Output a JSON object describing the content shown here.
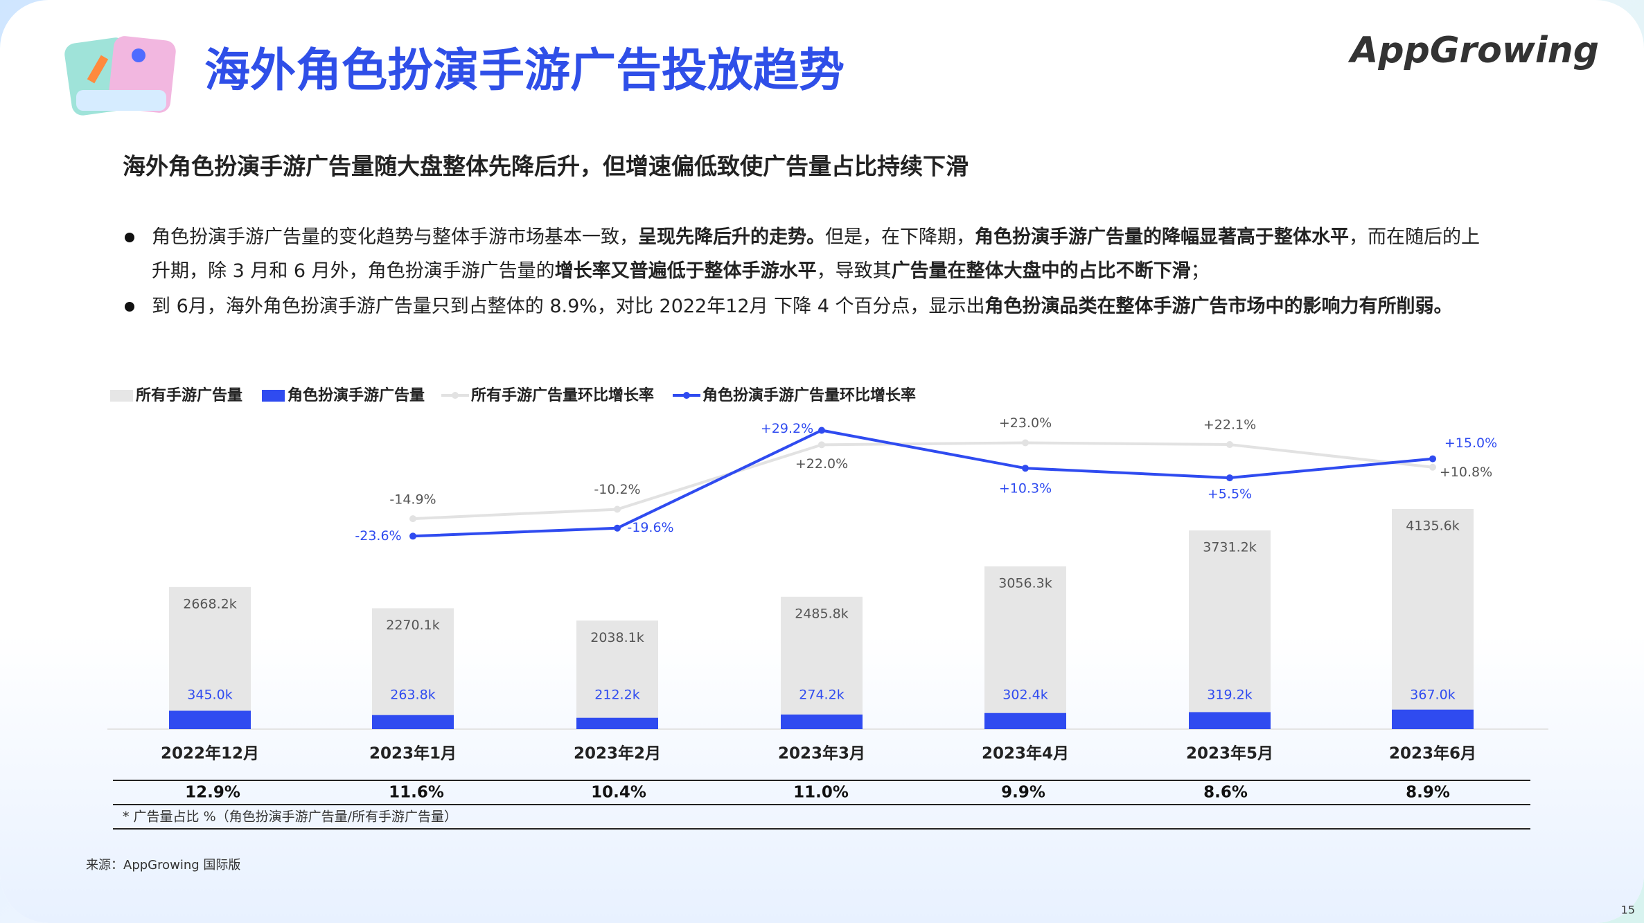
{
  "header": {
    "title": "海外角色扮演手游广告投放趋势",
    "logo": "AppGrowing"
  },
  "subtitle": "海外角色扮演手游广告量随大盘整体先降后升，但增速偏低致使广告量占比持续下滑",
  "bullets": [
    {
      "lines": [
        [
          "角色扮演手游广告量的变化趋势与整体手游市场基本一致，",
          "呈现先降后升的走势。",
          "但是，在下降期，",
          "角色扮演手游广告量的降幅显著高于整体水平",
          "，而在随后的上"
        ],
        [
          "升期，除 3 月和 6 月外，角色扮演手游广告量的",
          "增长率又普遍低于整体手游水平",
          "，导致其",
          "广告量在整体大盘中的占比不断下滑",
          "；"
        ]
      ]
    },
    {
      "lines": [
        [
          "到 6月，海外角色扮演手游广告量只到占整体的 8.9%，对比 2022年12月 下降 4 个百分点，显示出",
          "角色扮演品类在整体手游广告市场中的影响力有所削弱。"
        ]
      ]
    }
  ],
  "chart_data": {
    "type": "combo",
    "categories": [
      "2022年12月",
      "2023年1月",
      "2023年2月",
      "2023年3月",
      "2023年4月",
      "2023年5月",
      "2023年6月"
    ],
    "series": [
      {
        "name": "所有手游广告量",
        "type": "bar",
        "color": "#e6e6e6",
        "values": [
          2668.2,
          2270.1,
          2038.1,
          2485.8,
          3056.3,
          3731.2,
          4135.6
        ],
        "value_labels": [
          "2668.2k",
          "2270.1k",
          "2038.1k",
          "2485.8k",
          "3056.3k",
          "3731.2k",
          "4135.6k"
        ]
      },
      {
        "name": "角色扮演手游广告量",
        "type": "bar",
        "color": "#2f4bf0",
        "values": [
          345.0,
          263.8,
          212.2,
          274.2,
          302.4,
          319.2,
          367.0
        ],
        "value_labels": [
          "345.0k",
          "263.8k",
          "212.2k",
          "274.2k",
          "302.4k",
          "319.2k",
          "367.0k"
        ]
      },
      {
        "name": "所有手游广告量环比增长率",
        "type": "line",
        "color": "#e2e2e2",
        "values": [
          null,
          -14.9,
          -10.2,
          22.0,
          23.0,
          22.1,
          10.8
        ],
        "value_labels": [
          null,
          "-14.9%",
          "-10.2%",
          "+22.0%",
          "+23.0%",
          "+22.1%",
          "+10.8%"
        ]
      },
      {
        "name": "角色扮演手游广告量环比增长率",
        "type": "line",
        "color": "#2f4bf0",
        "values": [
          null,
          -23.6,
          -19.6,
          29.2,
          10.3,
          5.5,
          15.0
        ],
        "value_labels": [
          null,
          "-23.6%",
          "-19.6%",
          "+29.2%",
          "+10.3%",
          "+5.5%",
          "+15.0%"
        ]
      }
    ]
  },
  "share_row": [
    "12.9%",
    "11.6%",
    "10.4%",
    "11.0%",
    "9.9%",
    "8.6%",
    "8.9%"
  ],
  "share_note": "* 广告量占比 %（角色扮演手游广告量/所有手游广告量）",
  "source": "来源：AppGrowing 国际版",
  "page_number": "15"
}
